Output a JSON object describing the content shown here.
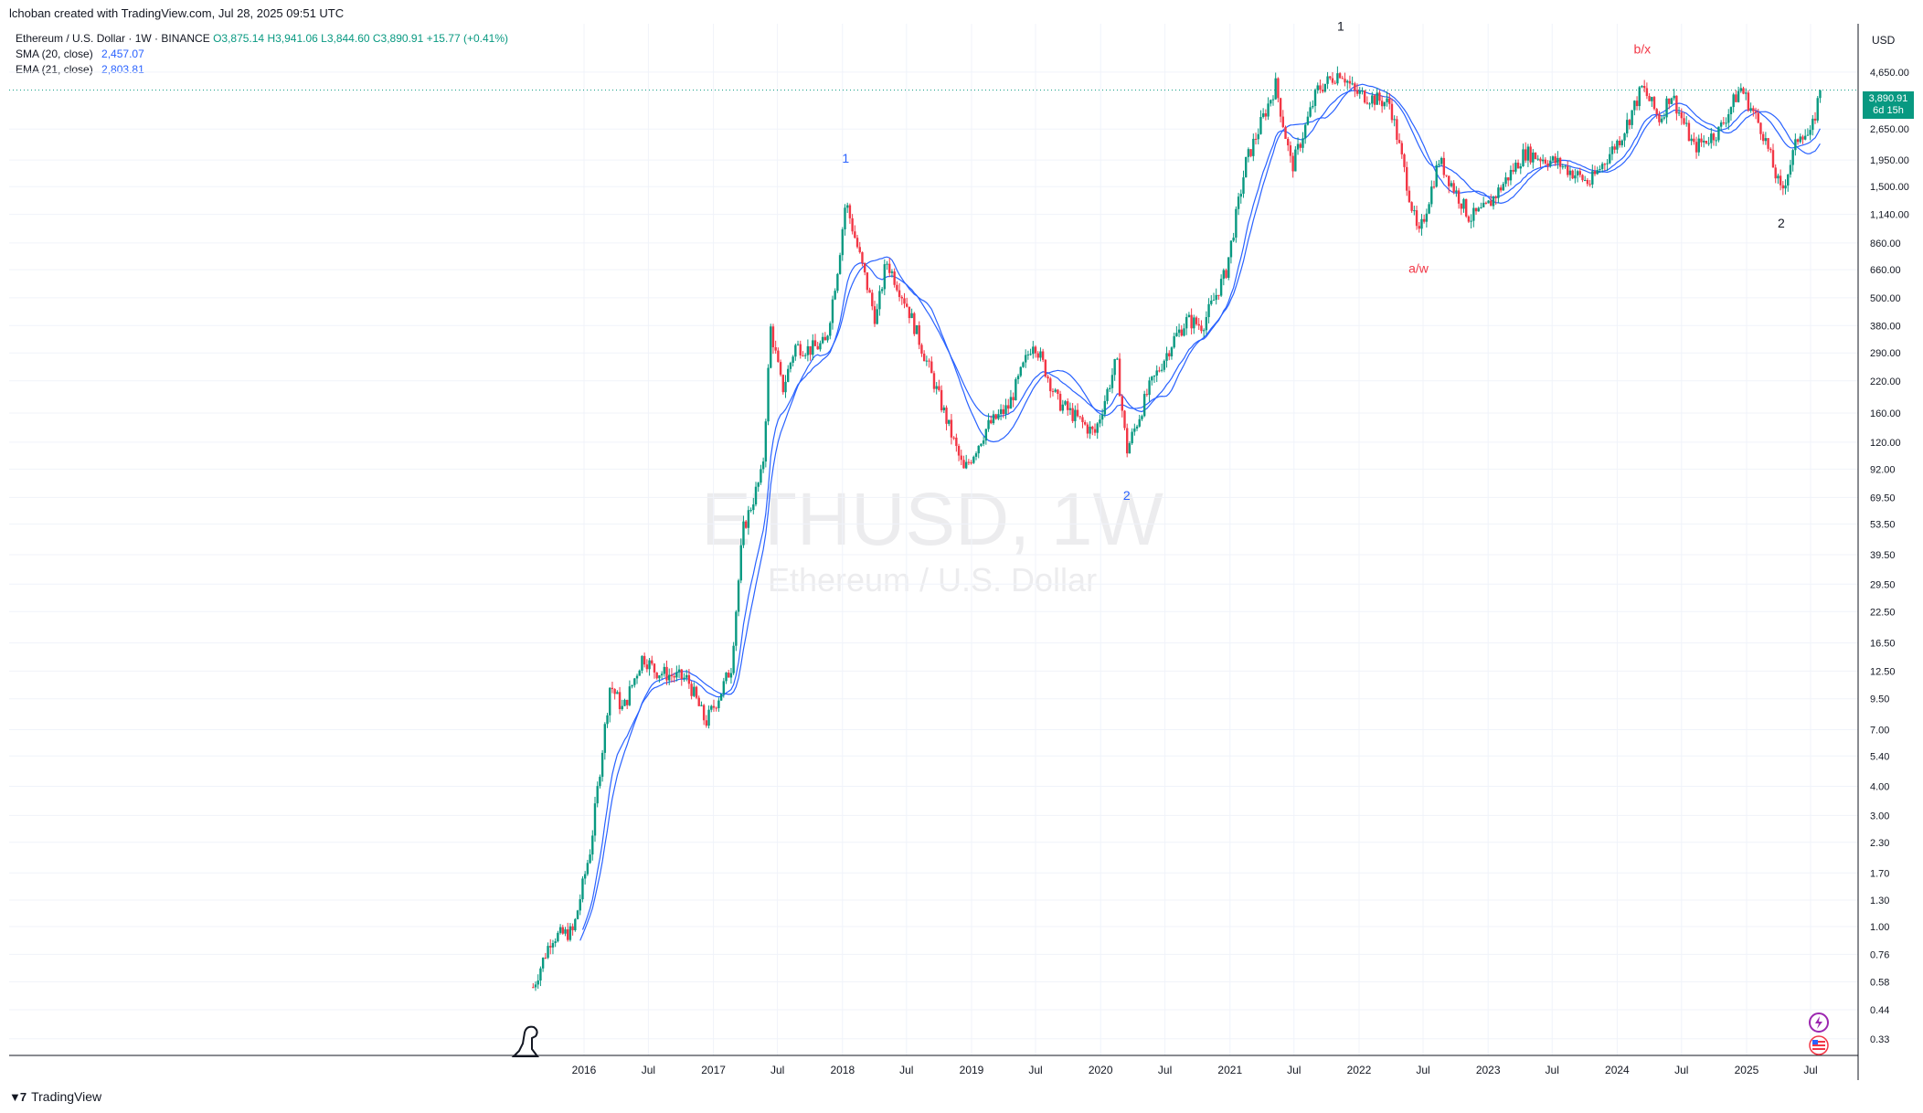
{
  "header": {
    "attribution": "lchoban created with TradingView.com, Jul 28, 2025 09:51 UTC"
  },
  "legend": {
    "symbol": "Ethereum / U.S. Dollar · 1W · BINANCE",
    "ohlc": "O3,875.14 H3,941.06 L3,844.60 C3,890.91 +15.77 (+0.41%)",
    "sma_label": "SMA (20, close)",
    "sma_value": "2,457.07",
    "ema_label": "EMA (21, close)",
    "ema_value": "2,803.81"
  },
  "watermark": {
    "title": "ETHUSD, 1W",
    "subtitle": "Ethereum / U.S. Dollar"
  },
  "price_scale": {
    "currency": "USD",
    "last_price": "3,890.91",
    "countdown": "6d 15h"
  },
  "brand": {
    "name": "TradingView"
  },
  "colors": {
    "up": "#089981",
    "down": "#f23645",
    "ma_line": "#2962ff",
    "grid": "#f0f3fa",
    "wave_blue": "#2962ff",
    "wave_black": "#131722",
    "wave_red": "#f23645"
  },
  "chart_data": {
    "type": "candlestick",
    "title": "ETHUSD, 1W",
    "subtitle": "Ethereum / U.S. Dollar",
    "y_scale": "log",
    "ylim": [
      0.28,
      7500
    ],
    "y_ticks": [
      "0.33",
      "0.44",
      "0.58",
      "0.76",
      "1.00",
      "1.30",
      "1.70",
      "2.30",
      "3.00",
      "4.00",
      "5.40",
      "7.00",
      "9.50",
      "12.50",
      "16.50",
      "22.50",
      "29.50",
      "39.50",
      "53.50",
      "69.50",
      "92.00",
      "120.00",
      "160.00",
      "220.00",
      "290.00",
      "380.00",
      "500.00",
      "660.00",
      "860.00",
      "1,140.00",
      "1,500.00",
      "1,950.00",
      "2,650.00",
      "4,650.00"
    ],
    "y_tick_values": [
      0.33,
      0.44,
      0.58,
      0.76,
      1.0,
      1.3,
      1.7,
      2.3,
      3.0,
      4.0,
      5.4,
      7.0,
      9.5,
      12.5,
      16.5,
      22.5,
      29.5,
      39.5,
      53.5,
      69.5,
      92,
      120,
      160,
      220,
      290,
      380,
      500,
      660,
      860,
      1140,
      1500,
      1950,
      2650,
      4650
    ],
    "x_ticks": [
      {
        "label": "2016",
        "date": "2016-01-01"
      },
      {
        "label": "Jul",
        "date": "2016-07-01"
      },
      {
        "label": "2017",
        "date": "2017-01-01"
      },
      {
        "label": "Jul",
        "date": "2017-07-01"
      },
      {
        "label": "2018",
        "date": "2018-01-01"
      },
      {
        "label": "Jul",
        "date": "2018-07-01"
      },
      {
        "label": "2019",
        "date": "2019-01-01"
      },
      {
        "label": "Jul",
        "date": "2019-07-01"
      },
      {
        "label": "2020",
        "date": "2020-01-01"
      },
      {
        "label": "Jul",
        "date": "2020-07-01"
      },
      {
        "label": "2021",
        "date": "2021-01-01"
      },
      {
        "label": "Jul",
        "date": "2021-07-01"
      },
      {
        "label": "2022",
        "date": "2022-01-01"
      },
      {
        "label": "Jul",
        "date": "2022-07-01"
      },
      {
        "label": "2023",
        "date": "2023-01-01"
      },
      {
        "label": "Jul",
        "date": "2023-07-01"
      },
      {
        "label": "2024",
        "date": "2024-01-01"
      },
      {
        "label": "Jul",
        "date": "2024-07-01"
      },
      {
        "label": "2025",
        "date": "2025-01-01"
      },
      {
        "label": "Jul",
        "date": "2025-07-01"
      }
    ],
    "price_path": [
      [
        "2015-08-10",
        0.55
      ],
      [
        "2015-10-01",
        0.9
      ],
      [
        "2015-12-01",
        0.95
      ],
      [
        "2016-01-20",
        2.2
      ],
      [
        "2016-02-20",
        5.5
      ],
      [
        "2016-03-15",
        11.0
      ],
      [
        "2016-04-20",
        8.5
      ],
      [
        "2016-06-15",
        14.5
      ],
      [
        "2016-07-20",
        12.5
      ],
      [
        "2016-09-01",
        12.0
      ],
      [
        "2016-10-20",
        11.5
      ],
      [
        "2016-12-10",
        7.5
      ],
      [
        "2017-01-20",
        10.0
      ],
      [
        "2017-02-20",
        13.0
      ],
      [
        "2017-03-25",
        50
      ],
      [
        "2017-05-20",
        90
      ],
      [
        "2017-06-12",
        370
      ],
      [
        "2017-07-15",
        200
      ],
      [
        "2017-08-20",
        310
      ],
      [
        "2017-10-01",
        300
      ],
      [
        "2017-11-15",
        320
      ],
      [
        "2017-12-20",
        700
      ],
      [
        "2018-01-10",
        1300
      ],
      [
        "2018-02-10",
        850
      ],
      [
        "2018-04-05",
        400
      ],
      [
        "2018-05-05",
        720
      ],
      [
        "2018-07-01",
        470
      ],
      [
        "2018-09-15",
        220
      ],
      [
        "2018-12-10",
        90
      ],
      [
        "2019-02-15",
        140
      ],
      [
        "2019-04-15",
        170
      ],
      [
        "2019-06-25",
        330
      ],
      [
        "2019-09-01",
        180
      ],
      [
        "2019-12-15",
        130
      ],
      [
        "2020-02-15",
        270
      ],
      [
        "2020-03-15",
        110
      ],
      [
        "2020-05-15",
        200
      ],
      [
        "2020-07-25",
        330
      ],
      [
        "2020-09-01",
        400
      ],
      [
        "2020-10-15",
        380
      ],
      [
        "2020-12-20",
        640
      ],
      [
        "2021-02-15",
        1900
      ],
      [
        "2021-05-10",
        4100
      ],
      [
        "2021-06-25",
        1800
      ],
      [
        "2021-09-05",
        3900
      ],
      [
        "2021-11-10",
        4700
      ],
      [
        "2021-12-20",
        3800
      ],
      [
        "2022-03-30",
        3400
      ],
      [
        "2022-06-18",
        900
      ],
      [
        "2022-08-15",
        1950
      ],
      [
        "2022-11-10",
        1100
      ],
      [
        "2022-12-25",
        1200
      ],
      [
        "2023-04-15",
        2100
      ],
      [
        "2023-07-15",
        1900
      ],
      [
        "2023-10-15",
        1550
      ],
      [
        "2024-01-15",
        2500
      ],
      [
        "2024-03-12",
        4000
      ],
      [
        "2024-05-01",
        2900
      ],
      [
        "2024-06-01",
        3800
      ],
      [
        "2024-08-05",
        2200
      ],
      [
        "2024-10-15",
        2600
      ],
      [
        "2024-12-15",
        4000
      ],
      [
        "2025-02-15",
        2600
      ],
      [
        "2025-04-09",
        1400
      ],
      [
        "2025-06-01",
        2600
      ],
      [
        "2025-07-01",
        2450
      ],
      [
        "2025-07-28",
        3890.91
      ]
    ],
    "series": [
      {
        "name": "SMA (20, close)",
        "last_value": 2457.07
      },
      {
        "name": "EMA (21, close)",
        "last_value": 2803.81
      }
    ],
    "annotations": [
      {
        "text": "1",
        "date": "2018-01-10",
        "price": 1900,
        "color": "blue"
      },
      {
        "text": "2",
        "date": "2020-03-15",
        "price": 68,
        "color": "blue"
      },
      {
        "text": "1",
        "date": "2021-11-10",
        "price": 7000,
        "color": "black"
      },
      {
        "text": "a/w",
        "date": "2022-06-18",
        "price": 640,
        "color": "red"
      },
      {
        "text": "b/x",
        "date": "2024-03-12",
        "price": 5600,
        "color": "red"
      },
      {
        "text": "2",
        "date": "2025-04-09",
        "price": 1000,
        "color": "black"
      }
    ],
    "last_price": 3890.91
  }
}
